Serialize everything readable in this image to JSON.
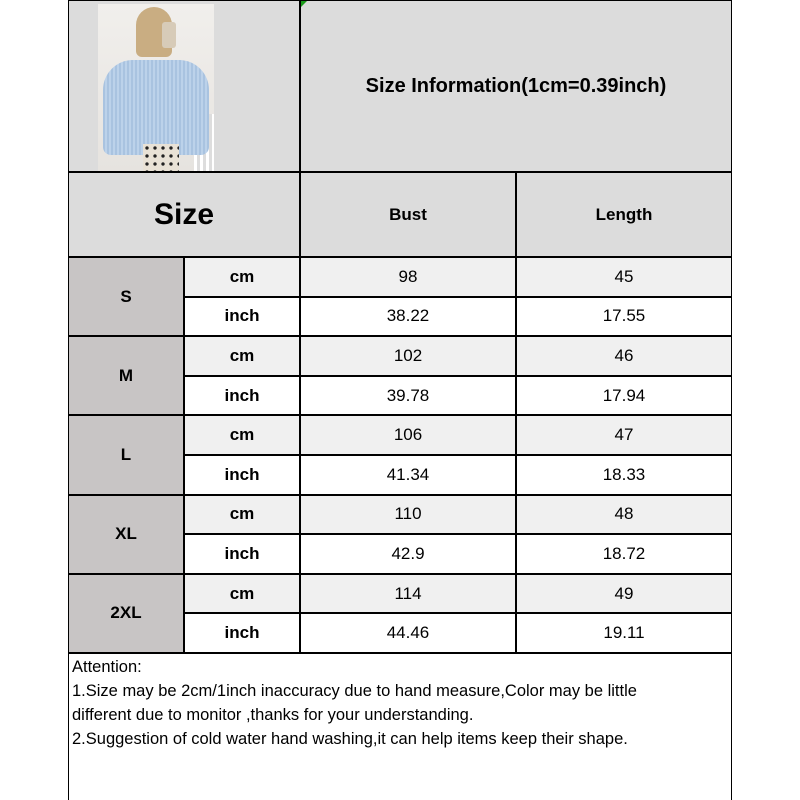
{
  "title": "Size Information(1cm=0.39inch)",
  "header": {
    "size": "Size",
    "bust": "Bust",
    "length": "Length"
  },
  "rows": [
    {
      "size": "S",
      "cm_label": "cm",
      "inch_label": "inch",
      "cm": {
        "bust": "98",
        "length": "45"
      },
      "inch": {
        "bust": "38.22",
        "length": "17.55"
      }
    },
    {
      "size": "M",
      "cm_label": "cm",
      "inch_label": "inch",
      "cm": {
        "bust": "102",
        "length": "46"
      },
      "inch": {
        "bust": "39.78",
        "length": "17.94"
      }
    },
    {
      "size": "L",
      "cm_label": "cm",
      "inch_label": "inch",
      "cm": {
        "bust": "106",
        "length": "47"
      },
      "inch": {
        "bust": "41.34",
        "length": "18.33"
      }
    },
    {
      "size": "XL",
      "cm_label": "cm",
      "inch_label": "inch",
      "cm": {
        "bust": "110",
        "length": "48"
      },
      "inch": {
        "bust": "42.9",
        "length": "18.72"
      }
    },
    {
      "size": "2XL",
      "cm_label": "cm",
      "inch_label": "inch",
      "cm": {
        "bust": "114",
        "length": "49"
      },
      "inch": {
        "bust": "44.46",
        "length": "19.11"
      }
    }
  ],
  "attention": {
    "lines": [
      "Attention:",
      "1.Size may be 2cm/1inch inaccuracy due to hand measure,Color may be little",
      "different due to monitor ,thanks for your understanding.",
      "2.Suggestion of cold water hand washing,it can help items keep their shape."
    ]
  },
  "colors": {
    "header_bg": "#dcdcdc",
    "size_bg": "#c8c5c5",
    "cm_row_bg": "#f0f0f0",
    "inch_row_bg": "#ffffff"
  }
}
